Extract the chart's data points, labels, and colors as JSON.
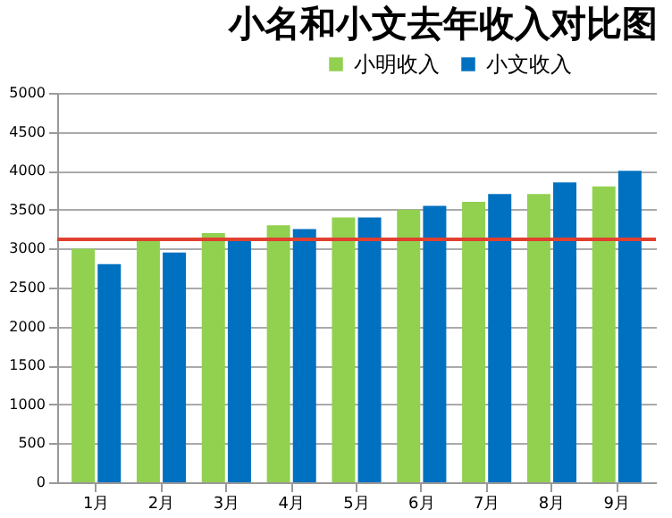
{
  "chart_data": {
    "type": "bar",
    "title": "小名和小文去年收入对比图",
    "categories": [
      "1月",
      "2月",
      "3月",
      "4月",
      "5月",
      "6月",
      "7月",
      "8月",
      "9月"
    ],
    "series": [
      {
        "name": "小明收入",
        "color": "#92d050",
        "values": [
          3000,
          3100,
          3200,
          3300,
          3400,
          3500,
          3600,
          3700,
          3800
        ]
      },
      {
        "name": "小文收入",
        "color": "#0070c0",
        "values": [
          2800,
          2950,
          3100,
          3250,
          3400,
          3550,
          3700,
          3850,
          4000
        ]
      }
    ],
    "ylim": [
      0,
      5000
    ],
    "yticks": [
      0,
      500,
      1000,
      1500,
      2000,
      2500,
      3000,
      3500,
      4000,
      4500,
      5000
    ],
    "ref_lines": [
      {
        "axis": "y",
        "value": 3120,
        "color": "#e04030"
      }
    ],
    "grid": "y",
    "legend": "top right"
  }
}
